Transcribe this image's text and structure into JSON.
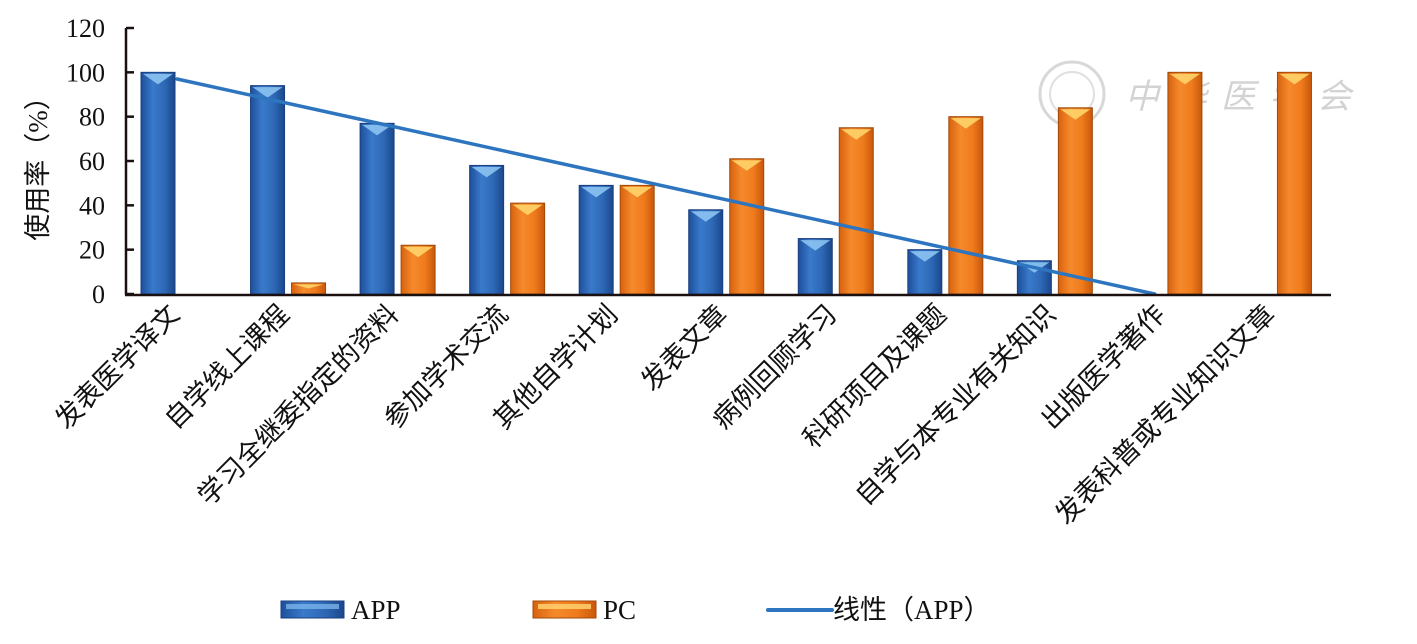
{
  "chart_data": {
    "type": "bar",
    "title": "",
    "xlabel": "",
    "ylabel": "使用率（%）",
    "ylim": [
      0,
      120
    ],
    "yticks": [
      0,
      20,
      40,
      60,
      80,
      100,
      120
    ],
    "grid": false,
    "categories": [
      "发表医学译文",
      "自学线上课程",
      "学习全继委指定的资料",
      "参加学术交流",
      "其他自学计划",
      "发表文章",
      "病例回顾学习",
      "科研项目及课题",
      "自学与本专业有关知识",
      "出版医学著作",
      "发表科普或专业知识文章"
    ],
    "series": [
      {
        "name": "APP",
        "color": "#2f6ab8",
        "values": [
          100,
          94,
          77,
          58,
          49,
          38,
          25,
          20,
          15,
          0,
          0
        ]
      },
      {
        "name": "PC",
        "color": "#ee7d1f",
        "values": [
          0,
          5,
          22,
          41,
          49,
          61,
          75,
          80,
          84,
          100,
          100
        ]
      }
    ],
    "trendline": {
      "name": "线性（APP）",
      "color": "#2e75c0",
      "of_series": "APP",
      "type": "linear",
      "start": 97,
      "end": 0,
      "from_category": 0,
      "to_category": 9
    },
    "legend": {
      "position": "bottom",
      "entries": [
        "APP",
        "PC",
        "线性（APP）"
      ]
    }
  },
  "watermark": {
    "text": "中华医学会"
  }
}
